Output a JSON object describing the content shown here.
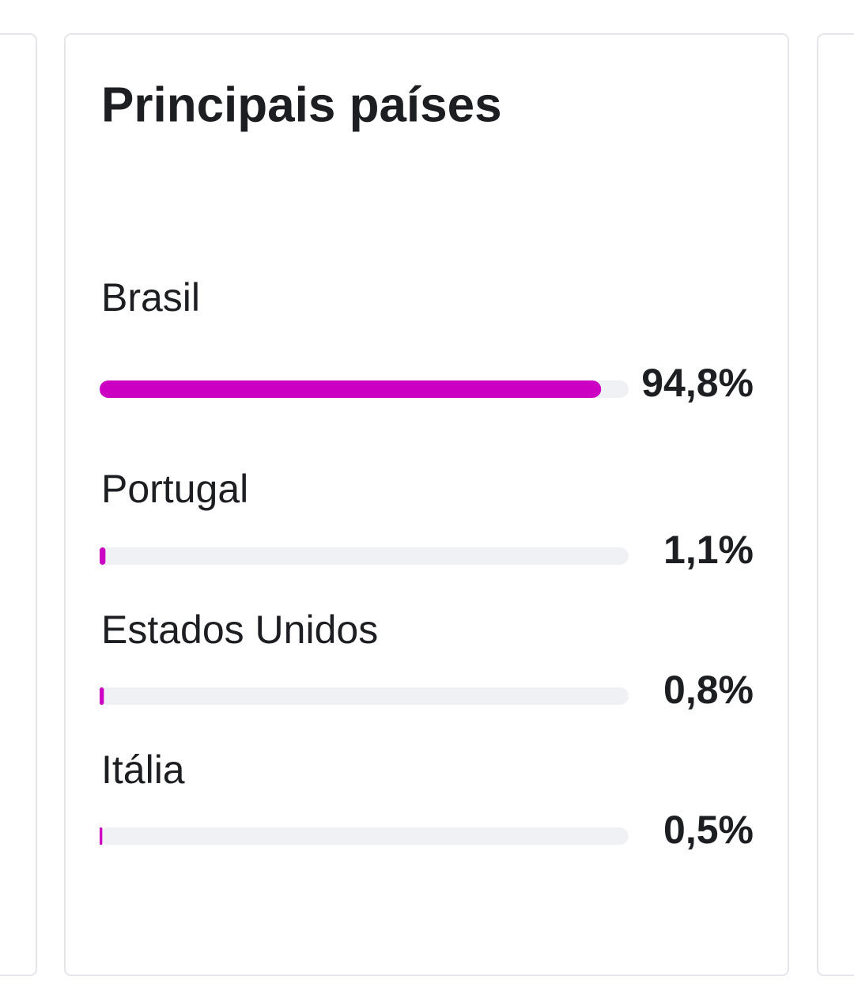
{
  "chart_data": {
    "type": "bar",
    "title": "Principais países",
    "categories": [
      "Brasil",
      "Portugal",
      "Estados Unidos",
      "Itália"
    ],
    "values": [
      94.8,
      1.1,
      0.8,
      0.5
    ],
    "value_labels": [
      "94,8%",
      "1,1%",
      "0,8%",
      "0,5%"
    ],
    "xlim": [
      0,
      100
    ],
    "color": "#cc00c3"
  }
}
